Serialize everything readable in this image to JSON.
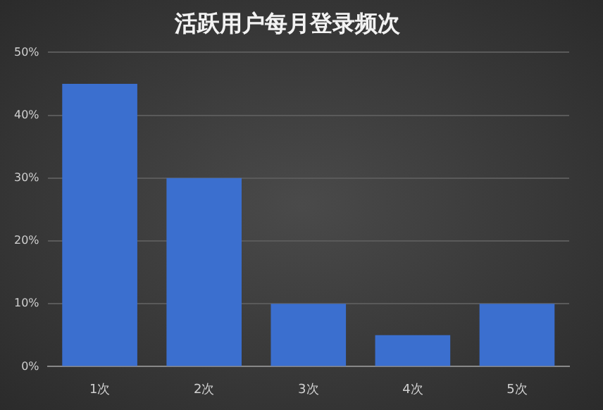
{
  "chart_data": {
    "type": "bar",
    "title": "活跃用户每月登录频次",
    "categories": [
      "1次",
      "2次",
      "3次",
      "4次",
      "5次"
    ],
    "values": [
      45,
      30,
      10,
      5,
      10
    ],
    "color": "#3b6fcf",
    "ylim": [
      0,
      50
    ],
    "yticks": [
      {
        "value": 0,
        "label": "0%"
      },
      {
        "value": 10,
        "label": "10%"
      },
      {
        "value": 20,
        "label": "20%"
      },
      {
        "value": 30,
        "label": "30%"
      },
      {
        "value": 40,
        "label": "40%"
      },
      {
        "value": 50,
        "label": "50%"
      }
    ],
    "grid": "y",
    "legend": false
  }
}
